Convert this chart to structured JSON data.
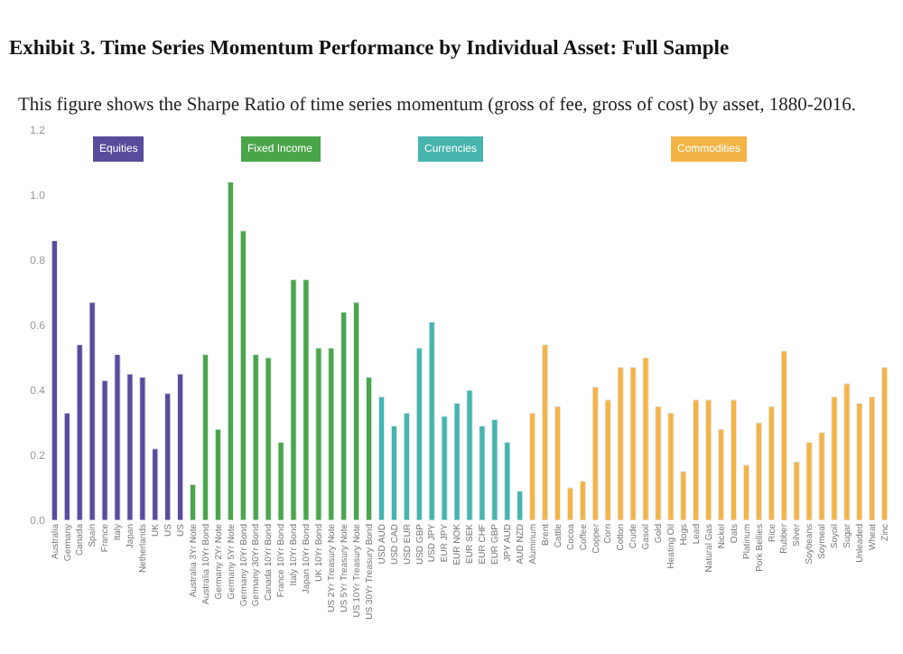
{
  "chart_data": {
    "type": "bar",
    "title": "Exhibit 3. Time Series Momentum Performance by Individual Asset: Full Sample",
    "subtitle": "This figure shows the Sharpe Ratio of time series momentum (gross of fee, gross of cost) by asset, 1880-2016.",
    "categories": [
      "Australia",
      "Germany",
      "Canada",
      "Spain",
      "France",
      "Italy",
      "Japan",
      "Netherlands",
      "UK",
      "US",
      "US",
      "Australia 3Yr Note",
      "Australia 10Yr Bond",
      "Germany 2Yr Note",
      "Germany 5Yr Note",
      "Germany 10Yr Bond",
      "Germany 30Yr Bond",
      "Canada 10Yr Bond",
      "France 10Yr Bond",
      "Italy 10Yr Bond",
      "Japan 10Yr Bond",
      "UK 10Yr Bond",
      "US 2Yr Treasury Note",
      "US 5Yr Treasury Note",
      "US 10Yr Treasury Note",
      "US 30Yr Treasury Bond",
      "USD AUD",
      "USD CAD",
      "USD EUR",
      "USD GBP",
      "USD JPY",
      "EUR JPY",
      "EUR NOK",
      "EUR SEK",
      "EUR CHF",
      "EUR GBP",
      "JPY AUD",
      "AUD NZD",
      "Aluminum",
      "Brent",
      "Cattle",
      "Cocoa",
      "Coffee",
      "Copper",
      "Corn",
      "Cotton",
      "Crude",
      "Gasoil",
      "Gold",
      "Heating Oil",
      "Hogs",
      "Lead",
      "Natural Gas",
      "Nickel",
      "Oats",
      "Platinum",
      "Pork Bellies",
      "Rice",
      "Rubber",
      "Silver",
      "Soybeans",
      "Soymeal",
      "Soyoil",
      "Sugar",
      "Unleaded",
      "Wheat",
      "Zinc"
    ],
    "series": [
      {
        "name": "Equities",
        "color": "#5a4b9c",
        "values": [
          0.86,
          0.33,
          0.54,
          0.67,
          0.43,
          0.51,
          0.45,
          0.44,
          0.22,
          0.39,
          0.45,
          null,
          null,
          null,
          null,
          null,
          null,
          null,
          null,
          null,
          null,
          null,
          null,
          null,
          null,
          null,
          null,
          null,
          null,
          null,
          null,
          null,
          null,
          null,
          null,
          null,
          null,
          null,
          null,
          null,
          null,
          null,
          null,
          null,
          null,
          null,
          null,
          null,
          null,
          null,
          null,
          null,
          null,
          null,
          null,
          null,
          null,
          null,
          null,
          null,
          null,
          null,
          null,
          null,
          null,
          null,
          null
        ]
      },
      {
        "name": "Fixed Income",
        "color": "#4aa548",
        "values": [
          null,
          null,
          null,
          null,
          null,
          null,
          null,
          null,
          null,
          null,
          null,
          0.11,
          0.51,
          0.28,
          1.04,
          0.89,
          0.51,
          0.5,
          0.24,
          0.74,
          0.74,
          0.53,
          0.53,
          0.64,
          0.67,
          0.44,
          null,
          null,
          null,
          null,
          null,
          null,
          null,
          null,
          null,
          null,
          null,
          null,
          null,
          null,
          null,
          null,
          null,
          null,
          null,
          null,
          null,
          null,
          null,
          null,
          null,
          null,
          null,
          null,
          null,
          null,
          null,
          null,
          null,
          null,
          null,
          null,
          null,
          null,
          null,
          null,
          null
        ]
      },
      {
        "name": "Currencies",
        "color": "#45b5ad",
        "values": [
          null,
          null,
          null,
          null,
          null,
          null,
          null,
          null,
          null,
          null,
          null,
          null,
          null,
          null,
          null,
          null,
          null,
          null,
          null,
          null,
          null,
          null,
          null,
          null,
          null,
          null,
          0.38,
          0.29,
          0.33,
          0.53,
          0.61,
          0.32,
          0.36,
          0.4,
          0.29,
          0.31,
          0.24,
          0.09,
          null,
          null,
          null,
          null,
          null,
          null,
          null,
          null,
          null,
          null,
          null,
          null,
          null,
          null,
          null,
          null,
          null,
          null,
          null,
          null,
          null,
          null,
          null,
          null,
          null,
          null,
          null,
          null,
          null
        ]
      },
      {
        "name": "Commodities",
        "color": "#f4b445",
        "values": [
          null,
          null,
          null,
          null,
          null,
          null,
          null,
          null,
          null,
          null,
          null,
          null,
          null,
          null,
          null,
          null,
          null,
          null,
          null,
          null,
          null,
          null,
          null,
          null,
          null,
          null,
          null,
          null,
          null,
          null,
          null,
          null,
          null,
          null,
          null,
          null,
          null,
          null,
          0.33,
          0.54,
          0.35,
          0.1,
          0.12,
          0.41,
          0.37,
          0.47,
          0.47,
          0.5,
          0.35,
          0.33,
          0.15,
          0.37,
          0.37,
          0.28,
          0.37,
          0.17,
          0.3,
          0.35,
          0.52,
          0.18,
          0.24,
          0.27,
          0.38,
          0.42,
          0.36,
          0.38,
          0.47
        ]
      }
    ],
    "ylim": [
      0,
      1.2
    ],
    "yticks": [
      {
        "value": 0,
        "label": "0.0"
      },
      0.2,
      0.4,
      0.6,
      0.8,
      {
        "value": 1,
        "label": "1.0"
      },
      1.2
    ],
    "legend": false
  }
}
